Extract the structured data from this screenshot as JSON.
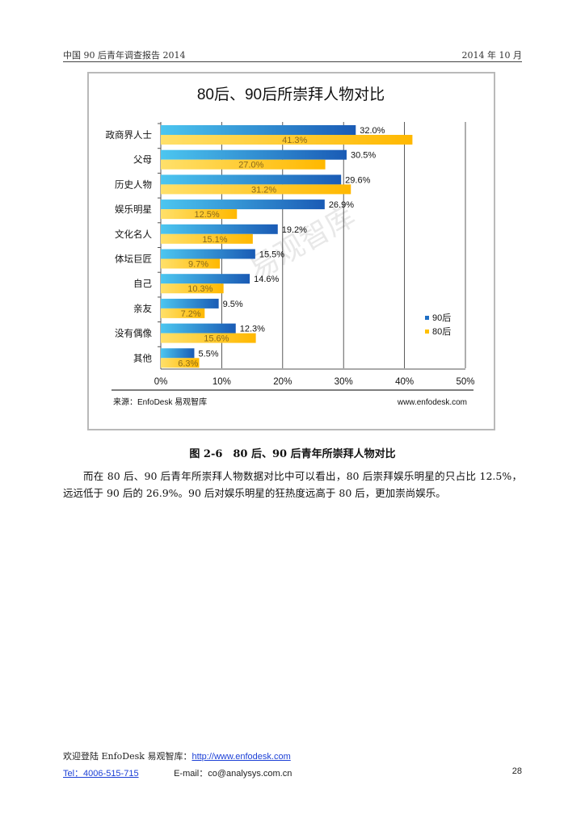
{
  "header": {
    "left": "中国 90 后青年调查报告 2014",
    "right": "2014 年 10 月"
  },
  "chart_data": {
    "type": "bar",
    "orientation": "horizontal",
    "title": "80后、90后所崇拜人物对比",
    "categories": [
      "政商界人士",
      "父母",
      "历史人物",
      "娱乐明星",
      "文化名人",
      "体坛巨匠",
      "自己",
      "亲友",
      "没有偶像",
      "其他"
    ],
    "series": [
      {
        "name": "90后",
        "values": [
          32.0,
          30.5,
          29.6,
          26.9,
          19.2,
          15.5,
          14.6,
          9.5,
          12.3,
          5.5
        ],
        "labels": [
          "32.0%",
          "30.5%",
          "29.6%",
          "26.9%",
          "19.2%",
          "15.5%",
          "14.6%",
          "9.5%",
          "12.3%",
          "5.5%"
        ],
        "color": "#1f6fc4"
      },
      {
        "name": "80后",
        "values": [
          41.3,
          27.0,
          31.2,
          12.5,
          15.1,
          9.7,
          10.3,
          7.2,
          15.6,
          6.3
        ],
        "labels": [
          "41.3%",
          "27.0%",
          "31.2%",
          "12.5%",
          "15.1%",
          "9.7%",
          "10.3%",
          "7.2%",
          "15.6%",
          "6.3%"
        ],
        "color": "#ffc000"
      }
    ],
    "xlim": [
      0,
      50
    ],
    "xticks": [
      "0%",
      "10%",
      "20%",
      "30%",
      "40%",
      "50%"
    ],
    "legend_position": "bottom-right",
    "grid": "vertical",
    "source": "来源：EnfoDesk 易观智库",
    "url": "www.enfodesk.com",
    "watermark": "易观智库"
  },
  "caption": "图 2-6　80 后、90 后青年所崇拜人物对比",
  "paragraph": "而在 80 后、90 后青年所崇拜人物数据对比中可以看出，80 后崇拜娱乐明星的只占比 12.5%，远远低于 90 后的 26.9%。90 后对娱乐明星的狂热度远高于 80 后，更加崇尚娱乐。",
  "footer": {
    "welcome": "欢迎登陆 EnfoDesk  易观智库：",
    "link": "http://www.enfodesk.com",
    "tel": "Tel：4006-515-715",
    "email": "E-mail：co@analysys.com.cn",
    "page": "28"
  }
}
